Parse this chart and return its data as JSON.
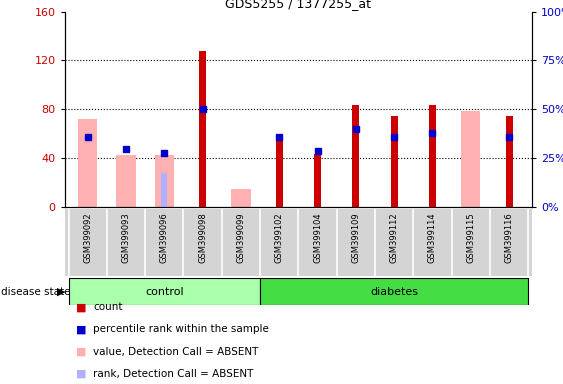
{
  "title": "GDS5255 / 1377255_at",
  "samples": [
    "GSM399092",
    "GSM399093",
    "GSM399096",
    "GSM399098",
    "GSM399099",
    "GSM399102",
    "GSM399104",
    "GSM399109",
    "GSM399112",
    "GSM399114",
    "GSM399115",
    "GSM399116"
  ],
  "n_control": 5,
  "n_diabetes": 7,
  "count": [
    0,
    0,
    0,
    128,
    0,
    60,
    44,
    84,
    75,
    84,
    0,
    75
  ],
  "percentile_rank": [
    36,
    30,
    28,
    50,
    0,
    36,
    29,
    40,
    36,
    38,
    0,
    36
  ],
  "value_absent": [
    72,
    43,
    43,
    0,
    15,
    0,
    0,
    0,
    0,
    0,
    79,
    0
  ],
  "rank_absent": [
    0,
    0,
    28,
    0,
    0,
    0,
    0,
    0,
    0,
    0,
    0,
    0
  ],
  "ylim_left": [
    0,
    160
  ],
  "ylim_right": [
    0,
    100
  ],
  "yticks_left": [
    0,
    40,
    80,
    120,
    160
  ],
  "yticks_right": [
    0,
    25,
    50,
    75,
    100
  ],
  "color_count": "#cc0000",
  "color_percentile": "#0000cc",
  "color_value_absent": "#ffb0b0",
  "color_rank_absent": "#b0b0ff",
  "bg_xtick": "#d4d4d4",
  "control_color": "#aaffaa",
  "diabetes_color": "#44dd44",
  "figsize": [
    5.63,
    3.84
  ],
  "dpi": 100
}
